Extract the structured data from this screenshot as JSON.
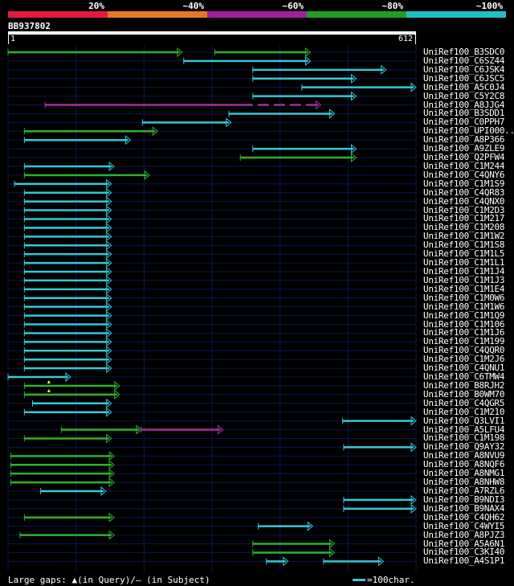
{
  "legend": {
    "segments": [
      {
        "label": "20%",
        "color": "#e8183c"
      },
      {
        "label": "~40%",
        "color": "#e87820"
      },
      {
        "label": "~60%",
        "color": "#a020a0"
      },
      {
        "label": "~80%",
        "color": "#20a020"
      },
      {
        "label": "~100%",
        "color": "#20c0c8"
      }
    ]
  },
  "query": {
    "id": "BB937802",
    "start": "1",
    "end": "612",
    "length": 612
  },
  "colors": {
    "high": "#34c8d8",
    "mid": "#30b030",
    "low": "#a030a0",
    "gridline": "#0a1650",
    "gap": "#ffff60"
  },
  "hits": [
    {
      "name": "UniRef100_B3SDC0",
      "segs": [
        [
          0,
          320,
          "g"
        ],
        [
          380,
          556,
          "g"
        ]
      ]
    },
    {
      "name": "UniRef100_C6SZ44",
      "segs": [
        [
          323,
          556,
          "c"
        ]
      ]
    },
    {
      "name": "UniRef100_C6JSK4",
      "segs": [
        [
          450,
          695,
          "c"
        ]
      ]
    },
    {
      "name": "UniRef100_C6JSC5",
      "segs": [
        [
          450,
          640,
          "c"
        ]
      ]
    },
    {
      "name": "UniRef100_A5C0J4",
      "segs": [
        [
          540,
          750,
          "c"
        ]
      ]
    },
    {
      "name": "UniRef100_C5Y2C8",
      "segs": [
        [
          450,
          640,
          "c"
        ]
      ]
    },
    {
      "name": "UniRef100_A8JJG4",
      "segs": [
        [
          68,
          575,
          "p"
        ]
      ],
      "dash": [
        450,
        575
      ]
    },
    {
      "name": "UniRef100_B3SDD1",
      "segs": [
        [
          406,
          600,
          "c"
        ]
      ]
    },
    {
      "name": "UniRef100_C0PPH7",
      "segs": [
        [
          247,
          410,
          "c"
        ]
      ]
    },
    {
      "name": "UniRef100_UPI000..",
      "segs": [
        [
          30,
          275,
          "g"
        ]
      ]
    },
    {
      "name": "UniRef100_A8P366",
      "segs": [
        [
          30,
          225,
          "c"
        ]
      ]
    },
    {
      "name": "UniRef100_A9ZLE9",
      "segs": [
        [
          450,
          640,
          "c"
        ]
      ]
    },
    {
      "name": "UniRef100_Q2PFW4",
      "segs": [
        [
          427,
          640,
          "g"
        ]
      ]
    },
    {
      "name": "UniRef100_C1M244",
      "segs": [
        [
          30,
          195,
          "c"
        ]
      ]
    },
    {
      "name": "UniRef100_C4QNY6",
      "segs": [
        [
          30,
          260,
          "g"
        ]
      ]
    },
    {
      "name": "UniRef100_C1M1S9",
      "segs": [
        [
          12,
          190,
          "c"
        ]
      ]
    },
    {
      "name": "UniRef100_C4QR83",
      "segs": [
        [
          30,
          190,
          "c"
        ]
      ]
    },
    {
      "name": "UniRef100_C4QNX0",
      "segs": [
        [
          30,
          190,
          "c"
        ]
      ]
    },
    {
      "name": "UniRef100_C1M2D3",
      "segs": [
        [
          30,
          190,
          "c"
        ]
      ]
    },
    {
      "name": "UniRef100_C1M217",
      "segs": [
        [
          30,
          190,
          "c"
        ]
      ]
    },
    {
      "name": "UniRef100_C1M208",
      "segs": [
        [
          30,
          190,
          "c"
        ]
      ]
    },
    {
      "name": "UniRef100_C1M1W2",
      "segs": [
        [
          30,
          190,
          "c"
        ]
      ]
    },
    {
      "name": "UniRef100_C1M1S8",
      "segs": [
        [
          30,
          190,
          "c"
        ]
      ]
    },
    {
      "name": "UniRef100_C1M1L5",
      "segs": [
        [
          30,
          190,
          "c"
        ]
      ]
    },
    {
      "name": "UniRef100_C1M1L1",
      "segs": [
        [
          30,
          190,
          "c"
        ]
      ]
    },
    {
      "name": "UniRef100_C1M1J4",
      "segs": [
        [
          30,
          190,
          "c"
        ]
      ]
    },
    {
      "name": "UniRef100_C1M1J3",
      "segs": [
        [
          30,
          190,
          "c"
        ]
      ]
    },
    {
      "name": "UniRef100_C1M1E4",
      "segs": [
        [
          30,
          190,
          "c"
        ]
      ]
    },
    {
      "name": "UniRef100_C1M0W6",
      "segs": [
        [
          30,
          190,
          "c"
        ]
      ]
    },
    {
      "name": "UniRef100_C1M1W6",
      "segs": [
        [
          30,
          190,
          "c"
        ]
      ]
    },
    {
      "name": "UniRef100_C1M1Q9",
      "segs": [
        [
          30,
          190,
          "c"
        ]
      ]
    },
    {
      "name": "UniRef100_C1M106",
      "segs": [
        [
          30,
          190,
          "c"
        ]
      ]
    },
    {
      "name": "UniRef100_C1M1J6",
      "segs": [
        [
          30,
          190,
          "c"
        ]
      ]
    },
    {
      "name": "UniRef100_C1M199",
      "segs": [
        [
          30,
          190,
          "c"
        ]
      ]
    },
    {
      "name": "UniRef100_C4QQR0",
      "segs": [
        [
          30,
          190,
          "c"
        ]
      ]
    },
    {
      "name": "UniRef100_C1M2J6",
      "segs": [
        [
          30,
          190,
          "c"
        ]
      ]
    },
    {
      "name": "UniRef100_C4QNU1",
      "segs": [
        [
          30,
          190,
          "c"
        ]
      ]
    },
    {
      "name": "UniRef100_C6TMW4",
      "segs": [
        [
          0,
          115,
          "c"
        ]
      ]
    },
    {
      "name": "UniRef100_B8RJH2",
      "segs": [
        [
          30,
          205,
          "g"
        ]
      ],
      "gapmark": 75
    },
    {
      "name": "UniRef100_B0WM70",
      "segs": [
        [
          30,
          205,
          "g"
        ]
      ],
      "gapmark": 75
    },
    {
      "name": "UniRef100_C4QGR5",
      "segs": [
        [
          45,
          190,
          "c"
        ]
      ]
    },
    {
      "name": "UniRef100_C1M210",
      "segs": [
        [
          30,
          190,
          "c"
        ]
      ]
    },
    {
      "name": "UniRef100_Q3LVI1",
      "segs": [
        [
          615,
          750,
          "c"
        ]
      ]
    },
    {
      "name": "UniRef100_A5LFU4",
      "segs": [
        [
          98,
          245,
          "g"
        ],
        [
          245,
          395,
          "p"
        ]
      ]
    },
    {
      "name": "UniRef100_C1M198",
      "segs": [
        [
          30,
          190,
          "g"
        ]
      ]
    },
    {
      "name": "UniRef100_Q9AY32",
      "segs": [
        [
          617,
          750,
          "c"
        ]
      ]
    },
    {
      "name": "UniRef100_A8NVU9",
      "segs": [
        [
          5,
          195,
          "g"
        ]
      ]
    },
    {
      "name": "UniRef100_A8NQF6",
      "segs": [
        [
          5,
          195,
          "g"
        ]
      ]
    },
    {
      "name": "UniRef100_A8NMG1",
      "segs": [
        [
          5,
          195,
          "g"
        ]
      ]
    },
    {
      "name": "UniRef100_A8NHW8",
      "segs": [
        [
          5,
          195,
          "g"
        ]
      ]
    },
    {
      "name": "UniRef100_A7RZL6",
      "segs": [
        [
          60,
          180,
          "c"
        ]
      ]
    },
    {
      "name": "UniRef100_B9NDI3",
      "segs": [
        [
          617,
          750,
          "c"
        ]
      ]
    },
    {
      "name": "UniRef100_B9NAX4",
      "segs": [
        [
          617,
          750,
          "c"
        ]
      ]
    },
    {
      "name": "UniRef100_C4QH62",
      "segs": [
        [
          30,
          195,
          "g"
        ]
      ]
    },
    {
      "name": "UniRef100_C4WYI5",
      "segs": [
        [
          460,
          560,
          "c"
        ]
      ]
    },
    {
      "name": "UniRef100_A8PJZ3",
      "segs": [
        [
          22,
          195,
          "g"
        ]
      ]
    },
    {
      "name": "UniRef100_A5A6N1",
      "segs": [
        [
          450,
          600,
          "g"
        ]
      ]
    },
    {
      "name": "UniRef100_C3KI40",
      "segs": [
        [
          450,
          600,
          "g"
        ]
      ]
    },
    {
      "name": "UniRef100_A4S1P1",
      "segs": [
        [
          475,
          515,
          "c"
        ],
        [
          580,
          690,
          "c"
        ]
      ]
    }
  ],
  "footer": {
    "gaps": "Large gaps: ▲(in Query)/– (in Subject)",
    "scale": "=100char."
  }
}
